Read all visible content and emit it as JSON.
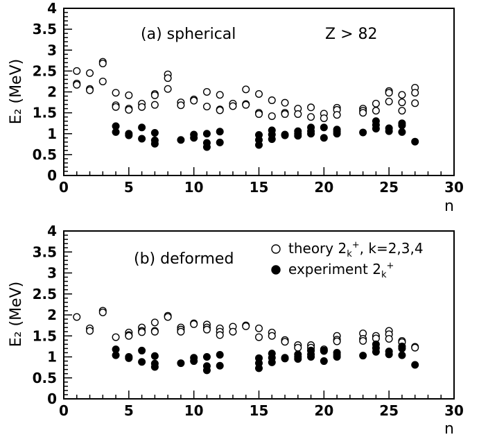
{
  "chart_data": [
    {
      "type": "scatter",
      "panel": "a",
      "annotation": "(a) spherical",
      "annotation2": "Z > 82",
      "xlabel": "n",
      "ylabel": "E₂ (MeV)",
      "xlim": [
        0,
        30
      ],
      "ylim": [
        0,
        4
      ],
      "xticks": [
        "0",
        "5",
        "10",
        "15",
        "20",
        "25",
        "30"
      ],
      "yticks": [
        "0",
        "0.5",
        "1",
        "1.5",
        "2",
        "2.5",
        "3",
        "3.5",
        "4"
      ],
      "grid": false,
      "series": [
        {
          "marker": "open-circle",
          "points": [
            [
              1,
              2.5
            ],
            [
              1,
              2.2
            ],
            [
              1,
              2.17
            ],
            [
              2,
              2.45
            ],
            [
              2,
              2.07
            ],
            [
              2,
              2.04
            ],
            [
              3,
              2.72
            ],
            [
              3,
              2.68
            ],
            [
              3,
              2.25
            ],
            [
              4,
              1.98
            ],
            [
              4,
              1.68
            ],
            [
              4,
              1.64
            ],
            [
              5,
              1.92
            ],
            [
              5,
              1.6
            ],
            [
              5,
              1.57
            ],
            [
              6,
              1.72
            ],
            [
              6,
              1.64
            ],
            [
              7,
              1.95
            ],
            [
              7,
              1.92
            ],
            [
              7,
              1.69
            ],
            [
              8,
              2.42
            ],
            [
              8,
              2.33
            ],
            [
              8,
              2.07
            ],
            [
              9,
              1.75
            ],
            [
              9,
              1.68
            ],
            [
              10,
              1.82
            ],
            [
              10,
              1.79
            ],
            [
              11,
              2.0
            ],
            [
              11,
              1.65
            ],
            [
              12,
              1.93
            ],
            [
              12,
              1.58
            ],
            [
              12,
              1.56
            ],
            [
              13,
              1.72
            ],
            [
              13,
              1.66
            ],
            [
              14,
              2.06
            ],
            [
              14,
              1.71
            ],
            [
              14,
              1.69
            ],
            [
              15,
              1.95
            ],
            [
              15,
              1.5
            ],
            [
              15,
              1.47
            ],
            [
              16,
              1.8
            ],
            [
              16,
              1.42
            ],
            [
              17,
              1.74
            ],
            [
              17,
              1.5
            ],
            [
              17,
              1.47
            ],
            [
              18,
              1.6
            ],
            [
              18,
              1.47
            ],
            [
              19,
              1.63
            ],
            [
              19,
              1.4
            ],
            [
              20,
              1.48
            ],
            [
              20,
              1.37
            ],
            [
              21,
              1.62
            ],
            [
              21,
              1.57
            ],
            [
              21,
              1.45
            ],
            [
              23,
              1.6
            ],
            [
              23,
              1.55
            ],
            [
              23,
              1.5
            ],
            [
              24,
              1.72
            ],
            [
              24,
              1.55
            ],
            [
              25,
              2.02
            ],
            [
              25,
              1.98
            ],
            [
              25,
              1.77
            ],
            [
              26,
              1.93
            ],
            [
              26,
              1.75
            ],
            [
              26,
              1.55
            ],
            [
              27,
              2.1
            ],
            [
              27,
              1.98
            ],
            [
              27,
              1.73
            ]
          ]
        },
        {
          "marker": "filled-circle",
          "points": [
            [
              4,
              1.18
            ],
            [
              4,
              1.04
            ],
            [
              5,
              1.0
            ],
            [
              5,
              0.96
            ],
            [
              6,
              1.15
            ],
            [
              6,
              0.88
            ],
            [
              7,
              1.02
            ],
            [
              7,
              0.84
            ],
            [
              7,
              0.76
            ],
            [
              9,
              0.85
            ],
            [
              10,
              0.98
            ],
            [
              10,
              0.9
            ],
            [
              11,
              1.0
            ],
            [
              11,
              0.78
            ],
            [
              11,
              0.68
            ],
            [
              12,
              1.05
            ],
            [
              12,
              0.79
            ],
            [
              15,
              0.97
            ],
            [
              15,
              0.85
            ],
            [
              15,
              0.73
            ],
            [
              16,
              1.08
            ],
            [
              16,
              0.98
            ],
            [
              16,
              0.87
            ],
            [
              17,
              0.98
            ],
            [
              17,
              0.96
            ],
            [
              18,
              1.06
            ],
            [
              18,
              1.0
            ],
            [
              18,
              0.95
            ],
            [
              19,
              1.15
            ],
            [
              19,
              1.06
            ],
            [
              19,
              1.0
            ],
            [
              20,
              1.15
            ],
            [
              20,
              0.9
            ],
            [
              21,
              1.1
            ],
            [
              21,
              1.05
            ],
            [
              21,
              1.0
            ],
            [
              23,
              1.03
            ],
            [
              24,
              1.3
            ],
            [
              24,
              1.21
            ],
            [
              24,
              1.12
            ],
            [
              25,
              1.13
            ],
            [
              25,
              1.06
            ],
            [
              26,
              1.25
            ],
            [
              26,
              1.2
            ],
            [
              26,
              1.04
            ],
            [
              27,
              0.81
            ]
          ]
        }
      ]
    },
    {
      "type": "scatter",
      "panel": "b",
      "annotation": "(b) deformed",
      "xlabel": "n",
      "ylabel": "E₂ (MeV)",
      "xlim": [
        0,
        30
      ],
      "ylim": [
        0,
        4
      ],
      "xticks": [
        "0",
        "5",
        "10",
        "15",
        "20",
        "25",
        "30"
      ],
      "yticks": [
        "0",
        "0.5",
        "1",
        "1.5",
        "2",
        "2.5",
        "3",
        "3.5",
        "4"
      ],
      "grid": false,
      "legend": {
        "placement": "top-right",
        "open_prefix": "theory 2",
        "open_sub": "k",
        "open_sup": "+",
        "open_suffix": ", k=2,3,4",
        "filled_prefix": "experiment 2",
        "filled_sub": "k",
        "filled_sup": "+"
      },
      "series": [
        {
          "marker": "open-circle",
          "points": [
            [
              1,
              1.95
            ],
            [
              2,
              1.68
            ],
            [
              2,
              1.62
            ],
            [
              3,
              2.1
            ],
            [
              3,
              2.06
            ],
            [
              4,
              1.47
            ],
            [
              5,
              1.58
            ],
            [
              5,
              1.52
            ],
            [
              5,
              1.5
            ],
            [
              6,
              1.7
            ],
            [
              6,
              1.62
            ],
            [
              6,
              1.59
            ],
            [
              7,
              1.82
            ],
            [
              7,
              1.62
            ],
            [
              7,
              1.6
            ],
            [
              8,
              1.98
            ],
            [
              8,
              1.95
            ],
            [
              9,
              1.7
            ],
            [
              9,
              1.65
            ],
            [
              9,
              1.6
            ],
            [
              10,
              1.8
            ],
            [
              10,
              1.78
            ],
            [
              11,
              1.77
            ],
            [
              11,
              1.7
            ],
            [
              11,
              1.65
            ],
            [
              12,
              1.68
            ],
            [
              12,
              1.6
            ],
            [
              12,
              1.52
            ],
            [
              13,
              1.72
            ],
            [
              13,
              1.6
            ],
            [
              14,
              1.75
            ],
            [
              14,
              1.73
            ],
            [
              15,
              1.68
            ],
            [
              15,
              1.47
            ],
            [
              16,
              1.58
            ],
            [
              16,
              1.5
            ],
            [
              17,
              1.4
            ],
            [
              17,
              1.36
            ],
            [
              18,
              1.28
            ],
            [
              18,
              1.22
            ],
            [
              19,
              1.28
            ],
            [
              19,
              1.22
            ],
            [
              19,
              1.15
            ],
            [
              20,
              1.18
            ],
            [
              20,
              1.14
            ],
            [
              21,
              1.5
            ],
            [
              21,
              1.41
            ],
            [
              21,
              1.37
            ],
            [
              23,
              1.56
            ],
            [
              23,
              1.43
            ],
            [
              23,
              1.38
            ],
            [
              24,
              1.5
            ],
            [
              24,
              1.44
            ],
            [
              25,
              1.62
            ],
            [
              25,
              1.54
            ],
            [
              25,
              1.43
            ],
            [
              26,
              1.38
            ],
            [
              26,
              1.35
            ],
            [
              27,
              1.24
            ],
            [
              27,
              1.22
            ]
          ]
        },
        {
          "marker": "filled-circle",
          "points": [
            [
              4,
              1.18
            ],
            [
              4,
              1.04
            ],
            [
              5,
              1.0
            ],
            [
              5,
              0.97
            ],
            [
              6,
              1.15
            ],
            [
              6,
              0.88
            ],
            [
              7,
              1.02
            ],
            [
              7,
              0.84
            ],
            [
              7,
              0.76
            ],
            [
              9,
              0.85
            ],
            [
              10,
              0.98
            ],
            [
              10,
              0.9
            ],
            [
              11,
              1.0
            ],
            [
              11,
              0.78
            ],
            [
              11,
              0.68
            ],
            [
              12,
              1.05
            ],
            [
              12,
              0.79
            ],
            [
              15,
              0.97
            ],
            [
              15,
              0.85
            ],
            [
              15,
              0.73
            ],
            [
              16,
              1.08
            ],
            [
              16,
              0.98
            ],
            [
              16,
              0.87
            ],
            [
              17,
              0.98
            ],
            [
              17,
              0.96
            ],
            [
              18,
              1.06
            ],
            [
              18,
              1.0
            ],
            [
              18,
              0.95
            ],
            [
              19,
              1.15
            ],
            [
              19,
              1.06
            ],
            [
              19,
              1.0
            ],
            [
              20,
              1.15
            ],
            [
              20,
              0.9
            ],
            [
              21,
              1.1
            ],
            [
              21,
              1.05
            ],
            [
              21,
              1.0
            ],
            [
              23,
              1.03
            ],
            [
              24,
              1.3
            ],
            [
              24,
              1.21
            ],
            [
              24,
              1.12
            ],
            [
              25,
              1.13
            ],
            [
              25,
              1.06
            ],
            [
              26,
              1.25
            ],
            [
              26,
              1.2
            ],
            [
              26,
              1.04
            ],
            [
              27,
              0.81
            ]
          ]
        }
      ]
    }
  ]
}
